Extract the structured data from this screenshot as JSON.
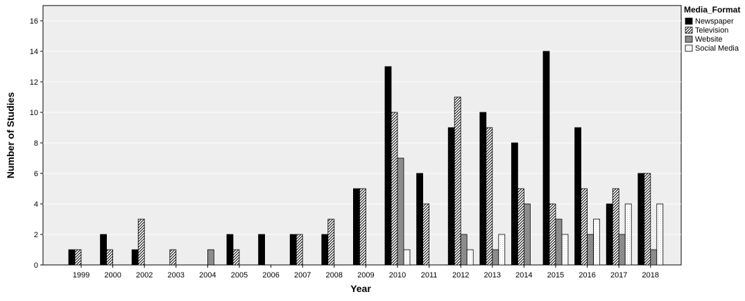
{
  "chart_data": {
    "type": "bar",
    "xlabel": "Year",
    "ylabel": "Number of Studies",
    "ylim": [
      0,
      17
    ],
    "yticks": [
      "0",
      "2",
      "4",
      "6",
      "8",
      "10",
      "12",
      "14",
      "16"
    ],
    "grid": true,
    "legend_title": "Media_Format",
    "legend_position": "right",
    "categories": [
      "1999",
      "2000",
      "2002",
      "2003",
      "2004",
      "2005",
      "2006",
      "2007",
      "2008",
      "2009",
      "2010",
      "2011",
      "2012",
      "2013",
      "2014",
      "2015",
      "2016",
      "2017",
      "2018"
    ],
    "series": [
      {
        "name": "Newspaper",
        "fill": "solid-black",
        "values": [
          1,
          2,
          1,
          0,
          0,
          2,
          2,
          2,
          2,
          5,
          13,
          6,
          9,
          10,
          8,
          14,
          9,
          4,
          6
        ]
      },
      {
        "name": "Television",
        "fill": "hatched",
        "values": [
          1,
          1,
          3,
          1,
          0,
          1,
          0,
          2,
          3,
          5,
          10,
          4,
          11,
          9,
          5,
          4,
          5,
          5,
          6
        ]
      },
      {
        "name": "Website",
        "fill": "solid-gray",
        "values": [
          0,
          0,
          0,
          0,
          1,
          0,
          0,
          0,
          0,
          0,
          7,
          0,
          2,
          1,
          4,
          3,
          2,
          2,
          1
        ]
      },
      {
        "name": "Social Media",
        "fill": "dotted-white",
        "values": [
          0,
          0,
          0,
          0,
          0,
          0,
          0,
          0,
          0,
          0,
          1,
          0,
          1,
          2,
          0,
          2,
          3,
          4,
          4
        ]
      }
    ],
    "colors": {
      "plot_background": "#eeeeee",
      "gridline": "#ffffff",
      "newspaper": "#000000",
      "website": "#8c8c8c"
    }
  }
}
